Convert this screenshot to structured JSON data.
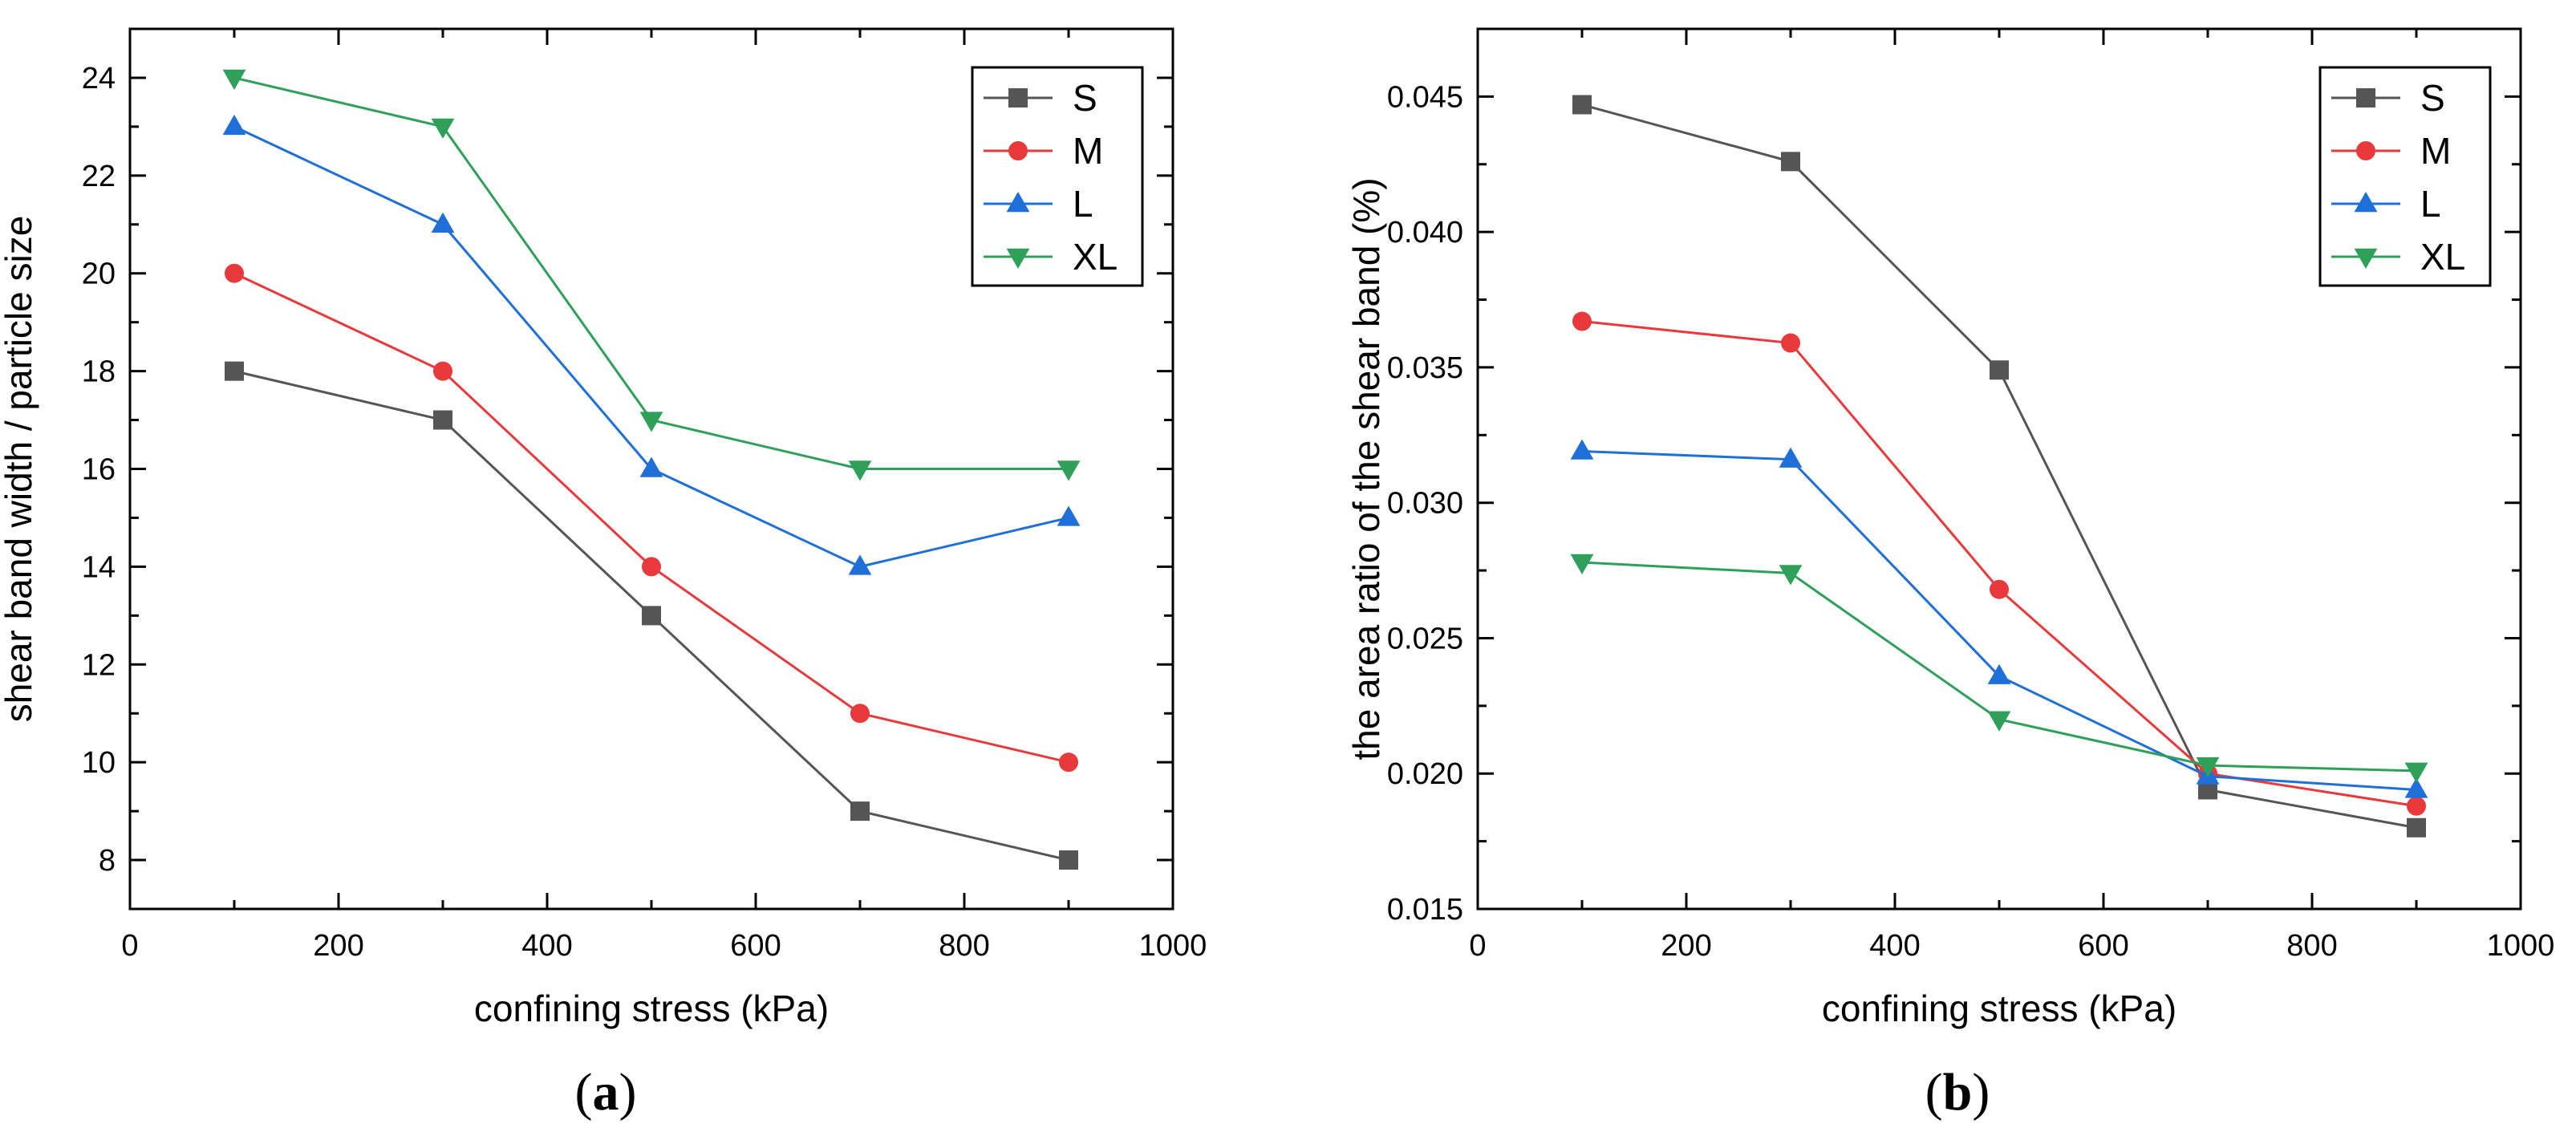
{
  "chart_data": [
    {
      "type": "line",
      "panel_label": "a",
      "xlabel": "confining stress (kPa)",
      "ylabel": "shear band width / particle size",
      "xlim": [
        0,
        1000
      ],
      "ylim": [
        7,
        25
      ],
      "xticks": [
        0,
        200,
        400,
        600,
        800,
        1000
      ],
      "yticks": [
        8,
        10,
        12,
        14,
        16,
        18,
        20,
        22,
        24
      ],
      "ytick_decimals": 0,
      "grid": false,
      "legend_position": "top-right",
      "x": [
        100,
        300,
        500,
        700,
        900
      ],
      "series": [
        {
          "name": "S",
          "marker": "square",
          "color": "#555555",
          "values": [
            18,
            17,
            13,
            9,
            8
          ]
        },
        {
          "name": "M",
          "marker": "circle",
          "color": "#e8393c",
          "values": [
            20,
            18,
            14,
            11,
            10
          ]
        },
        {
          "name": "L",
          "marker": "triangle-up",
          "color": "#1f6fd8",
          "values": [
            23,
            21,
            16,
            14,
            15
          ]
        },
        {
          "name": "XL",
          "marker": "triangle-down",
          "color": "#2ea05a",
          "values": [
            24,
            23,
            17,
            16,
            16
          ]
        }
      ]
    },
    {
      "type": "line",
      "panel_label": "b",
      "xlabel": "confining stress (kPa)",
      "ylabel": "the area ratio of the shear band (%)",
      "xlim": [
        0,
        1000
      ],
      "ylim": [
        0.015,
        0.0475
      ],
      "xticks": [
        0,
        200,
        400,
        600,
        800,
        1000
      ],
      "yticks": [
        0.015,
        0.02,
        0.025,
        0.03,
        0.035,
        0.04,
        0.045
      ],
      "ytick_decimals": 3,
      "grid": false,
      "legend_position": "top-right",
      "x": [
        100,
        300,
        500,
        700,
        900
      ],
      "series": [
        {
          "name": "S",
          "marker": "square",
          "color": "#555555",
          "values": [
            0.0447,
            0.0426,
            0.0349,
            0.0194,
            0.018
          ]
        },
        {
          "name": "M",
          "marker": "circle",
          "color": "#e8393c",
          "values": [
            0.0367,
            0.0359,
            0.0268,
            0.02,
            0.0188
          ]
        },
        {
          "name": "L",
          "marker": "triangle-up",
          "color": "#1f6fd8",
          "values": [
            0.0319,
            0.0316,
            0.0236,
            0.0199,
            0.0194
          ]
        },
        {
          "name": "XL",
          "marker": "triangle-down",
          "color": "#2ea05a",
          "values": [
            0.0278,
            0.0274,
            0.022,
            0.0203,
            0.0201
          ]
        }
      ]
    }
  ]
}
